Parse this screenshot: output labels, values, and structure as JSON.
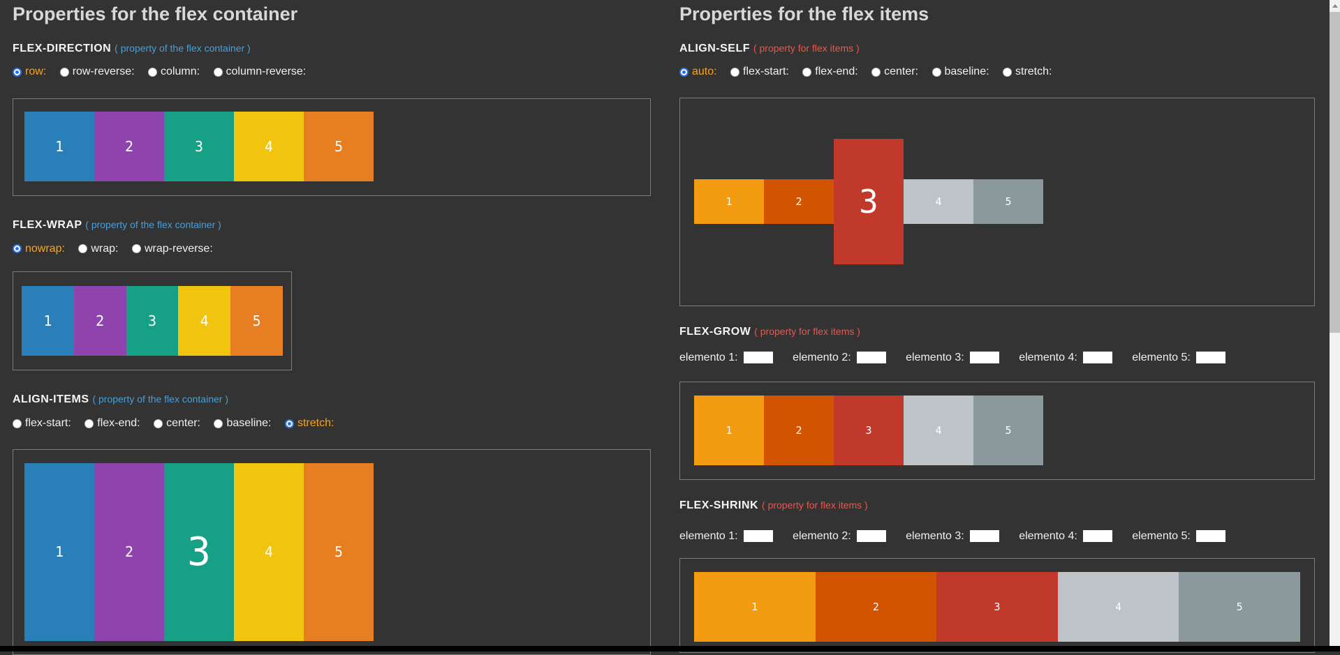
{
  "palette_container": [
    "#2980b9",
    "#8f44ad",
    "#16a085",
    "#f1c40f",
    "#e67e22"
  ],
  "palette_items": [
    "#f39c12",
    "#d35400",
    "#c0392b",
    "#bdc3c7",
    "#8b989c"
  ],
  "box_numbers": [
    "1",
    "2",
    "3",
    "4",
    "5"
  ],
  "colors": {
    "background": "#333333",
    "container_border": "#7d7d7d",
    "note_container": "#4a9fd8",
    "note_items": "#e8584f",
    "selected_label": "#f7a41d",
    "radio_selected": "#2b72e0",
    "heading": "#d8d8d8",
    "label_text": "#f0f0f0",
    "black_bar": "#000000",
    "scrollbar_track": "#f1f1f1",
    "scrollbar_thumb": "#c1c1c1"
  },
  "left": {
    "title": "Properties for the flex container",
    "flex_direction": {
      "label": "FLEX-DIRECTION",
      "note": "( property of the flex container )",
      "options": [
        {
          "label": "row:",
          "selected": true
        },
        {
          "label": "row-reverse:",
          "selected": false
        },
        {
          "label": "column:",
          "selected": false
        },
        {
          "label": "column-reverse:",
          "selected": false
        }
      ]
    },
    "flex_wrap": {
      "label": "FLEX-WRAP",
      "note": "( property of the flex container )",
      "options": [
        {
          "label": "nowrap:",
          "selected": true
        },
        {
          "label": "wrap:",
          "selected": false
        },
        {
          "label": "wrap-reverse:",
          "selected": false
        }
      ]
    },
    "align_items": {
      "label": "ALIGN-ITEMS",
      "note": "( property of the flex container )",
      "options": [
        {
          "label": "flex-start:",
          "selected": false
        },
        {
          "label": "flex-end:",
          "selected": false
        },
        {
          "label": "center:",
          "selected": false
        },
        {
          "label": "baseline:",
          "selected": false
        },
        {
          "label": "stretch:",
          "selected": true
        }
      ]
    }
  },
  "right": {
    "title": "Properties for the flex items",
    "align_self": {
      "label": "ALIGN-SELF",
      "note": "( property for flex items )",
      "options": [
        {
          "label": "auto:",
          "selected": true
        },
        {
          "label": "flex-start:",
          "selected": false
        },
        {
          "label": "flex-end:",
          "selected": false
        },
        {
          "label": "center:",
          "selected": false
        },
        {
          "label": "baseline:",
          "selected": false
        },
        {
          "label": "stretch:",
          "selected": false
        }
      ]
    },
    "flex_grow": {
      "label": "FLEX-GROW",
      "note": "( property for flex items )",
      "inputs": [
        {
          "label": "elemento 1:",
          "value": ""
        },
        {
          "label": "elemento 2:",
          "value": ""
        },
        {
          "label": "elemento 3:",
          "value": ""
        },
        {
          "label": "elemento 4:",
          "value": ""
        },
        {
          "label": "elemento 5:",
          "value": ""
        }
      ]
    },
    "flex_shrink": {
      "label": "FLEX-SHRINK",
      "note": "( property for flex items )",
      "inputs": [
        {
          "label": "elemento 1:",
          "value": ""
        },
        {
          "label": "elemento 2:",
          "value": ""
        },
        {
          "label": "elemento 3:",
          "value": ""
        },
        {
          "label": "elemento 4:",
          "value": ""
        },
        {
          "label": "elemento 5:",
          "value": ""
        }
      ]
    }
  }
}
